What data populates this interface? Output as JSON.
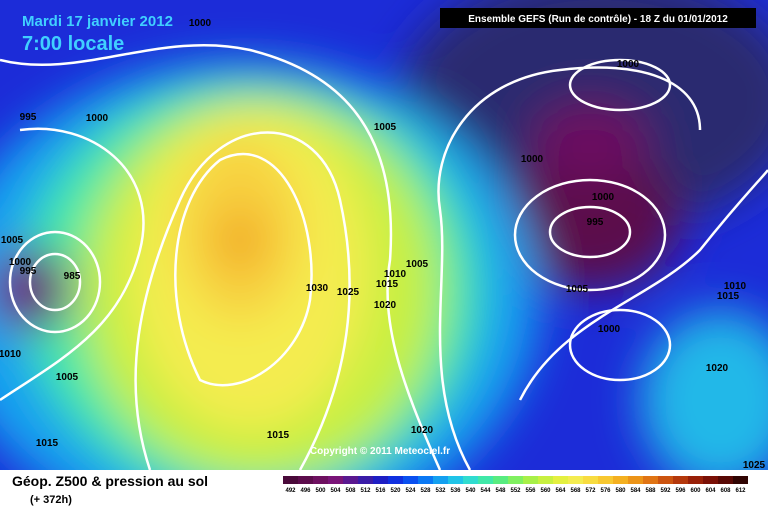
{
  "header": {
    "date": "Mardi 17 janvier 2012",
    "time": "7:00 locale",
    "run": "Ensemble GEFS (Run de contrôle)  -  18 Z du 01/01/2012"
  },
  "map": {
    "copyright": "Copyright © 2011 Meteociel.fr",
    "isobar_labels": [
      "1000",
      "995",
      "1000",
      "1005",
      "1000",
      "1000",
      "1000",
      "995",
      "1005",
      "1000",
      "995",
      "985",
      "1010",
      "1005",
      "1015",
      "1030",
      "1025",
      "1020",
      "1005",
      "1000",
      "1010",
      "1015",
      "1020",
      "1010",
      "1005",
      "1015",
      "1015",
      "1020",
      "1025"
    ]
  },
  "legend": {
    "title": "Géop. Z500 & pression au sol",
    "subtitle": "(+ 372h)",
    "levels": [
      492,
      496,
      500,
      504,
      508,
      512,
      516,
      520,
      524,
      528,
      532,
      536,
      540,
      544,
      548,
      552,
      556,
      560,
      564,
      568,
      572,
      576,
      580,
      584,
      588,
      592,
      596,
      600,
      604,
      608,
      612
    ],
    "colors": [
      "#4a0a3a",
      "#5c0c4c",
      "#6e1060",
      "#7a1478",
      "#5a1890",
      "#3a1ca8",
      "#1e1ec4",
      "#1030e0",
      "#0a50f0",
      "#0a78f4",
      "#14a0f0",
      "#20c4e8",
      "#30dcd0",
      "#40e8a8",
      "#58ec80",
      "#80f060",
      "#a8f048",
      "#c8f040",
      "#e4f040",
      "#f4ec50",
      "#f8dc40",
      "#f8c830",
      "#f4b020",
      "#ec9418",
      "#e07414",
      "#cc5410",
      "#b4380c",
      "#982008",
      "#7a1006",
      "#580804",
      "#300402"
    ]
  }
}
